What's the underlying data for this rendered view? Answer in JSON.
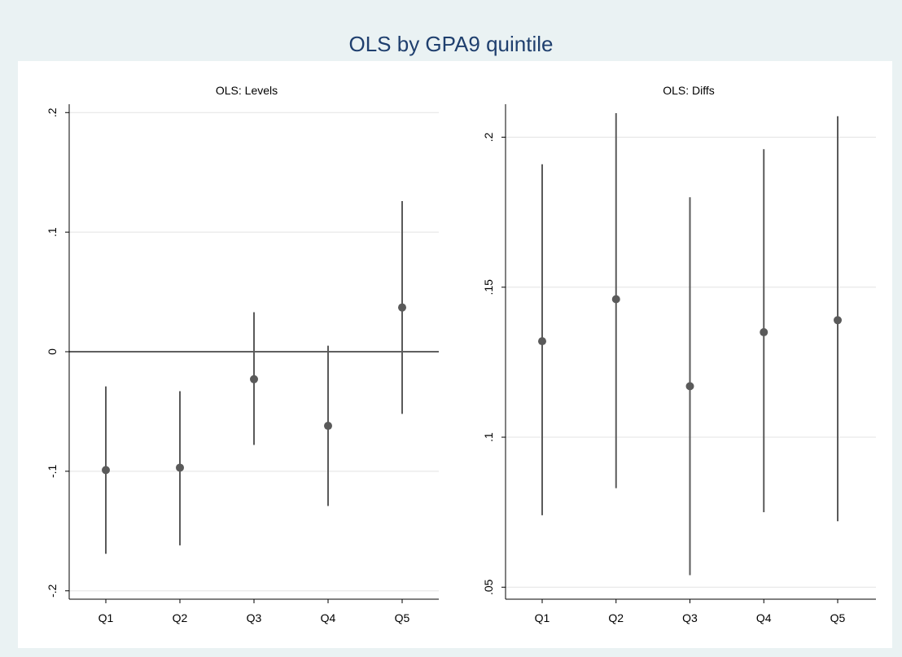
{
  "title": "OLS by GPA9 quintile",
  "colors": {
    "outer_background": "#eaf2f3",
    "plot_background": "#ffffff",
    "gridline": "#e3e3e3",
    "marker": "#5a5a5a",
    "title": "#1f3f6e"
  },
  "chart_data": [
    {
      "type": "scatter",
      "subtype": "coefficient plot with confidence intervals",
      "title": "OLS: Levels",
      "categories": [
        "Q1",
        "Q2",
        "Q3",
        "Q4",
        "Q5"
      ],
      "estimate": [
        -0.099,
        -0.097,
        -0.023,
        -0.062,
        0.037
      ],
      "ci_lower": [
        -0.169,
        -0.162,
        -0.078,
        -0.129,
        -0.052
      ],
      "ci_upper": [
        -0.029,
        -0.033,
        0.033,
        0.005,
        0.126
      ],
      "ylim": [
        -0.207,
        0.207
      ],
      "yticks": [
        -0.2,
        -0.1,
        0,
        0.1,
        0.2
      ],
      "ytick_labels": [
        "-.2",
        "-.1",
        "0",
        ".1",
        ".2"
      ],
      "reference_line": 0,
      "grid": true
    },
    {
      "type": "scatter",
      "subtype": "coefficient plot with confidence intervals",
      "title": "OLS: Diffs",
      "categories": [
        "Q1",
        "Q2",
        "Q3",
        "Q4",
        "Q5"
      ],
      "estimate": [
        0.132,
        0.146,
        0.117,
        0.135,
        0.139
      ],
      "ci_lower": [
        0.074,
        0.083,
        0.054,
        0.075,
        0.072
      ],
      "ci_upper": [
        0.191,
        0.208,
        0.18,
        0.196,
        0.207
      ],
      "ylim": [
        0.046,
        0.211
      ],
      "yticks": [
        0.05,
        0.1,
        0.15,
        0.2
      ],
      "ytick_labels": [
        ".05",
        ".1",
        ".15",
        ".2"
      ],
      "grid": true
    }
  ]
}
